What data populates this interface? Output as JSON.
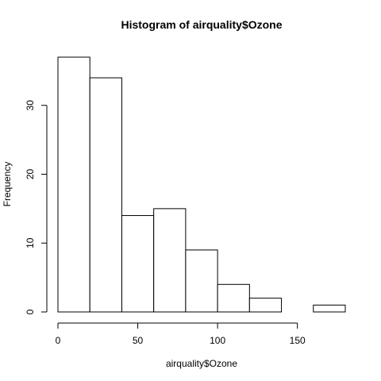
{
  "chart_data": {
    "type": "bar",
    "title": "Histogram of airquality$Ozone",
    "xlabel": "airquality$Ozone",
    "ylabel": "Frequency",
    "bins": [
      {
        "from": 0,
        "to": 20,
        "count": 37
      },
      {
        "from": 20,
        "to": 40,
        "count": 34
      },
      {
        "from": 40,
        "to": 60,
        "count": 14
      },
      {
        "from": 60,
        "to": 80,
        "count": 15
      },
      {
        "from": 80,
        "to": 100,
        "count": 9
      },
      {
        "from": 100,
        "to": 120,
        "count": 4
      },
      {
        "from": 120,
        "to": 140,
        "count": 2
      },
      {
        "from": 140,
        "to": 160,
        "count": 0
      },
      {
        "from": 160,
        "to": 180,
        "count": 1
      }
    ],
    "xlim": [
      0,
      180
    ],
    "ylim": [
      0,
      37
    ],
    "xticks": [
      "0",
      "50",
      "100",
      "150"
    ],
    "yticks": [
      "0",
      "10",
      "20",
      "30"
    ],
    "grid": false,
    "bar_fill": "#ffffff",
    "bar_stroke": "#000000"
  }
}
